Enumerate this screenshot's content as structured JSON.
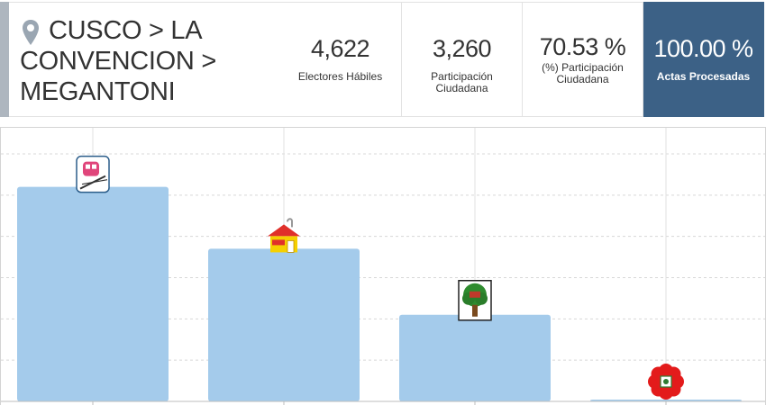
{
  "location": {
    "text": "CUSCO > LA CONVENCION > MEGANTONI",
    "icon": "map-pin-icon"
  },
  "stats": [
    {
      "value": "4,622",
      "label": "Electores Hábiles"
    },
    {
      "value": "3,260",
      "label": "Participación Ciudadana"
    },
    {
      "value": "70.53 %",
      "label": "(%) Participación Ciudadana"
    },
    {
      "value": "100.00 %",
      "label": "Actas Procesadas"
    }
  ],
  "colors": {
    "bar": "#a4cbeb",
    "accent": "#3c6186",
    "grid": "#d8d8d8"
  },
  "chart_data": {
    "type": "bar",
    "title": "",
    "xlabel": "",
    "ylabel": "",
    "categories": [
      "train-logo",
      "house-logo",
      "tree-logo",
      "flower-logo"
    ],
    "values": [
      52,
      37,
      21,
      0.4
    ],
    "ylim": [
      0,
      60
    ],
    "grid": true,
    "legend": "none",
    "party_logos": [
      "train-logo",
      "house-logo",
      "tree-logo",
      "flower-logo"
    ]
  }
}
